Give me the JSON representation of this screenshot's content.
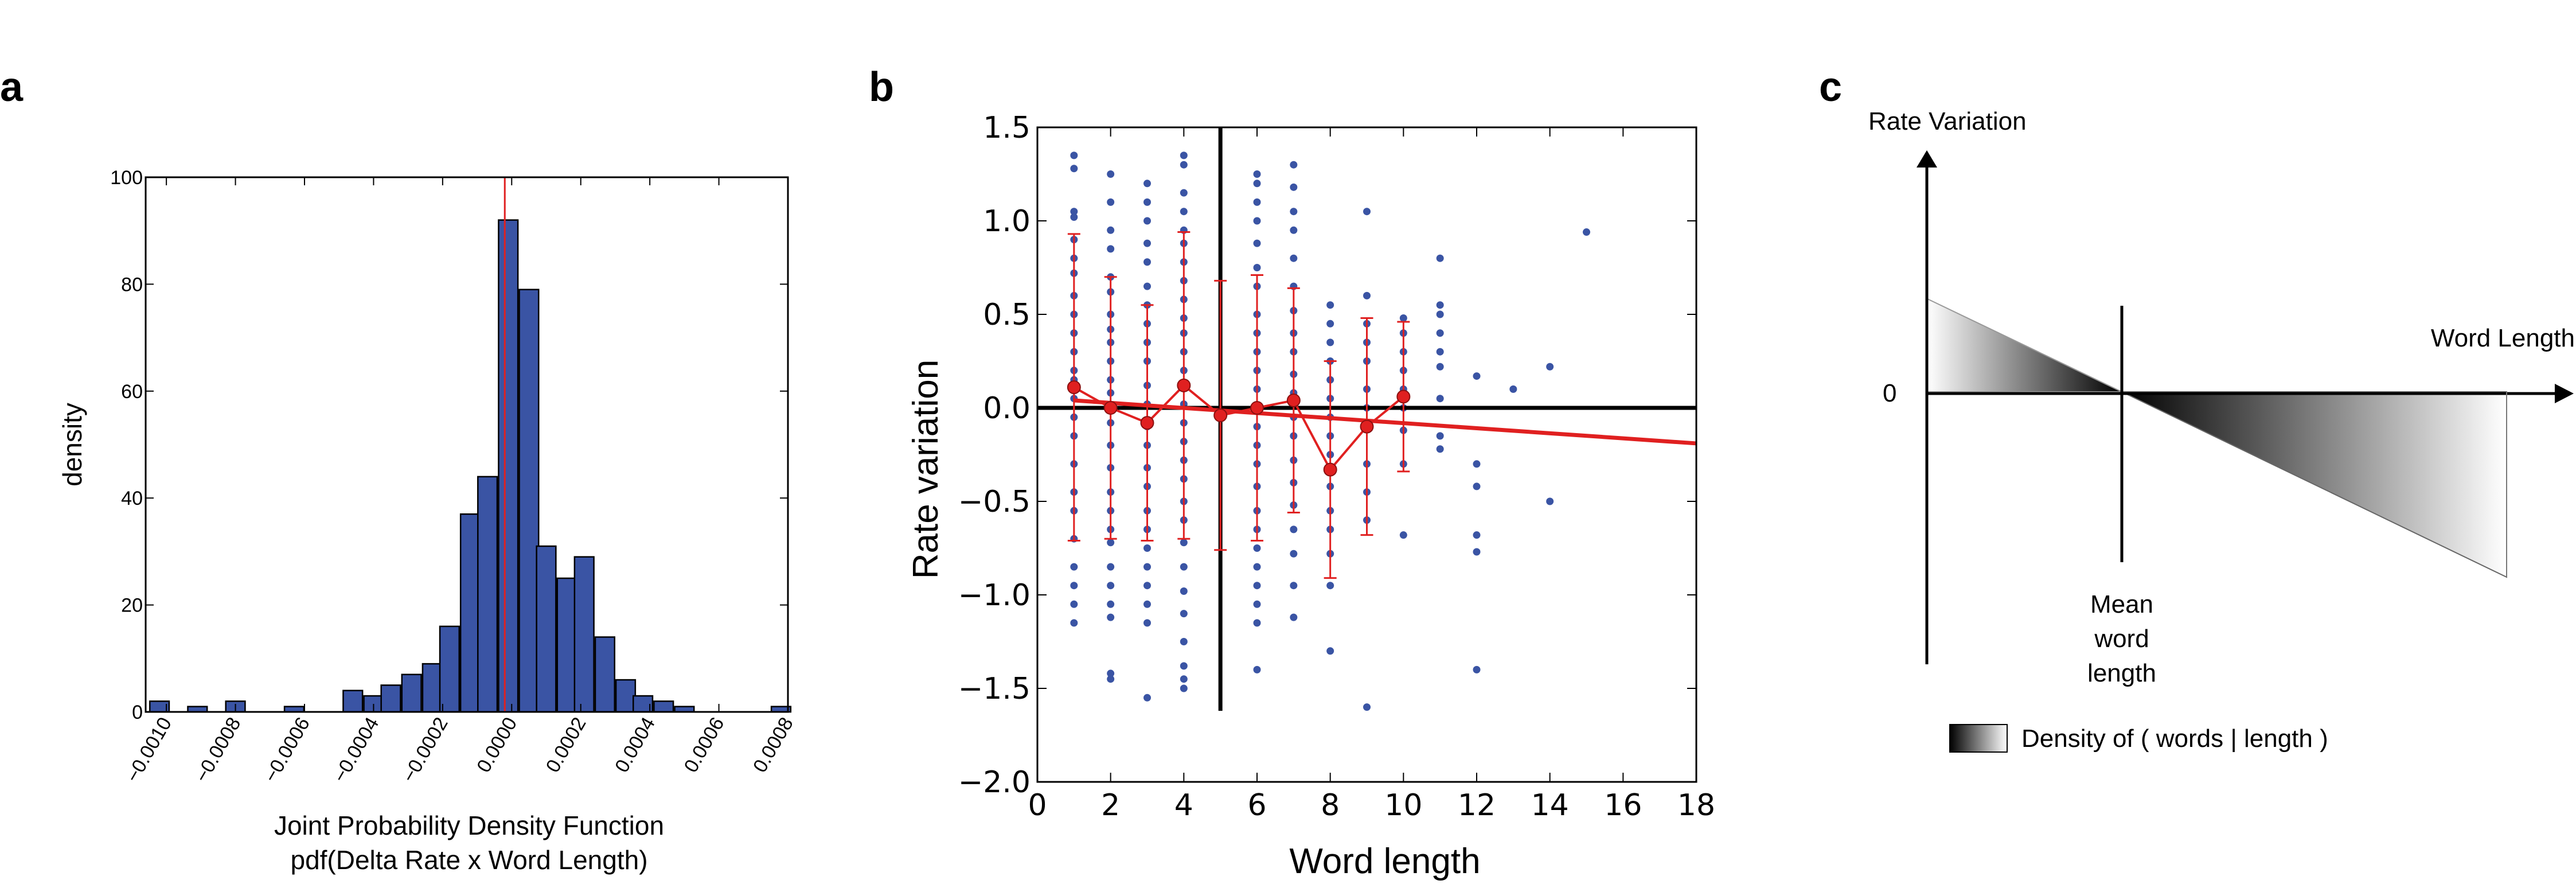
{
  "panels": {
    "a": {
      "letter": "a"
    },
    "b": {
      "letter": "b"
    },
    "c": {
      "letter": "c"
    }
  },
  "chart_data": [
    {
      "panel": "a",
      "type": "bar",
      "xlabel_line1": "Joint Probability Density Function",
      "xlabel_line2": "pdf(Delta Rate x Word Length)",
      "ylabel": "density",
      "xlim": [
        -0.00106,
        0.0008
      ],
      "ylim": [
        0,
        100
      ],
      "xticks": [
        -0.001,
        -0.0008,
        -0.0006,
        -0.0004,
        -0.0002,
        0.0,
        0.0002,
        0.0004,
        0.0006,
        0.0008
      ],
      "xtick_labels": [
        "−0.0010",
        "−0.0008",
        "−0.0006",
        "−0.0004",
        "−0.0002",
        "0.0000",
        "0.0002",
        "0.0004",
        "0.0006",
        "0.0008"
      ],
      "yticks": [
        0,
        20,
        40,
        60,
        80,
        100
      ],
      "ytick_labels": [
        "0",
        "20",
        "40",
        "60",
        "80",
        "100"
      ],
      "bin_width": 5.6e-05,
      "bin_centers": [
        -0.00102,
        -0.00091,
        -0.0008,
        -0.00074,
        -0.00063,
        -0.00046,
        -0.0004,
        -0.00035,
        -0.00029,
        -0.00023,
        -0.00018,
        -0.00012,
        -7e-05,
        -1e-05,
        5e-05,
        0.0001,
        0.00016,
        0.00021,
        0.00027,
        0.00033,
        0.00038,
        0.00044,
        0.0005,
        0.00056,
        0.00061,
        0.00067,
        0.00078
      ],
      "values": [
        2,
        1,
        2,
        0,
        1,
        4,
        3,
        5,
        7,
        9,
        16,
        37,
        44,
        92,
        79,
        31,
        25,
        29,
        14,
        6,
        3,
        2,
        1,
        0,
        0,
        0,
        1
      ],
      "vline_x": -2e-05,
      "bar_color": "#3a54a4",
      "vline_color": "#e02020"
    },
    {
      "panel": "b",
      "type": "scatter",
      "xlabel": "Word length",
      "ylabel": "Rate variation",
      "xlim": [
        0,
        18
      ],
      "ylim": [
        -2.0,
        1.5
      ],
      "xticks": [
        0,
        2,
        4,
        6,
        8,
        10,
        12,
        14,
        16,
        18
      ],
      "xtick_labels": [
        "0",
        "2",
        "4",
        "6",
        "8",
        "10",
        "12",
        "14",
        "16",
        "18"
      ],
      "yticks": [
        1.5,
        1.0,
        0.5,
        0.0,
        -0.5,
        -1.0,
        -1.5,
        -2.0
      ],
      "ytick_labels": [
        "1.5",
        "1.0",
        "0.5",
        "0.0",
        "−0.5",
        "−1.0",
        "−1.5",
        "−2.0"
      ],
      "point_columns": [
        {
          "x": 1,
          "y": [
            1.35,
            1.28,
            1.05,
            1.02,
            0.9,
            0.8,
            0.72,
            0.6,
            0.5,
            0.4,
            0.3,
            0.2,
            0.15,
            0.05,
            -0.05,
            -0.15,
            -0.3,
            -0.45,
            -0.55,
            -0.7,
            -0.85,
            -0.95,
            -1.05,
            -1.15
          ]
        },
        {
          "x": 2,
          "y": [
            1.25,
            1.1,
            0.95,
            0.85,
            0.7,
            0.62,
            0.5,
            0.42,
            0.35,
            0.25,
            0.15,
            0.08,
            0.0,
            -0.08,
            -0.2,
            -0.32,
            -0.45,
            -0.55,
            -0.65,
            -0.72,
            -0.85,
            -0.95,
            -1.05,
            -1.12,
            -1.42,
            -1.45
          ]
        },
        {
          "x": 3,
          "y": [
            1.2,
            1.1,
            1.0,
            0.88,
            0.78,
            0.65,
            0.55,
            0.45,
            0.35,
            0.25,
            0.12,
            0.02,
            -0.1,
            -0.2,
            -0.32,
            -0.42,
            -0.55,
            -0.65,
            -0.75,
            -0.85,
            -0.95,
            -1.05,
            -1.15,
            -1.55
          ]
        },
        {
          "x": 4,
          "y": [
            1.35,
            1.3,
            1.15,
            1.05,
            0.95,
            0.88,
            0.78,
            0.68,
            0.58,
            0.48,
            0.4,
            0.3,
            0.2,
            0.12,
            0.02,
            -0.08,
            -0.18,
            -0.28,
            -0.38,
            -0.5,
            -0.6,
            -0.72,
            -0.85,
            -0.98,
            -1.1,
            -1.25,
            -1.38,
            -1.45,
            -1.5
          ]
        },
        {
          "x": 6,
          "y": [
            1.25,
            1.2,
            1.1,
            1.0,
            0.88,
            0.75,
            0.65,
            0.5,
            0.4,
            0.3,
            0.2,
            0.1,
            0.0,
            -0.1,
            -0.2,
            -0.3,
            -0.42,
            -0.55,
            -0.65,
            -0.75,
            -0.85,
            -0.95,
            -1.05,
            -1.15,
            -1.4
          ]
        },
        {
          "x": 7,
          "y": [
            1.3,
            1.18,
            1.05,
            0.95,
            0.8,
            0.65,
            0.52,
            0.4,
            0.3,
            0.18,
            0.08,
            -0.05,
            -0.15,
            -0.28,
            -0.4,
            -0.52,
            -0.65,
            -0.78,
            -0.95,
            -1.12
          ]
        },
        {
          "x": 8,
          "y": [
            0.55,
            0.45,
            0.35,
            0.25,
            0.15,
            0.05,
            -0.05,
            -0.15,
            -0.25,
            -0.42,
            -0.55,
            -0.65,
            -0.78,
            -0.95,
            -1.3
          ]
        },
        {
          "x": 9,
          "y": [
            1.05,
            0.6,
            0.45,
            0.35,
            0.25,
            0.1,
            0.0,
            -0.1,
            -0.3,
            -0.45,
            -0.6,
            -1.6
          ]
        },
        {
          "x": 10,
          "y": [
            0.48,
            0.4,
            0.3,
            0.2,
            0.1,
            0.0,
            -0.12,
            -0.3,
            -0.68
          ]
        },
        {
          "x": 11,
          "y": [
            0.8,
            0.55,
            0.5,
            0.4,
            0.3,
            0.22,
            0.05,
            -0.15,
            -0.22
          ]
        },
        {
          "x": 12,
          "y": [
            0.17,
            -0.3,
            -0.42,
            -0.68,
            -0.77,
            -1.4
          ]
        },
        {
          "x": 13,
          "y": [
            0.1
          ]
        },
        {
          "x": 14,
          "y": [
            0.22,
            -0.5
          ]
        },
        {
          "x": 15,
          "y": [
            0.94
          ]
        }
      ],
      "means": {
        "x": [
          1,
          2,
          3,
          4,
          5,
          6,
          7,
          8,
          9,
          10
        ],
        "y": [
          0.11,
          0.0,
          -0.08,
          0.12,
          -0.04,
          0.0,
          0.04,
          -0.33,
          -0.1,
          0.06
        ],
        "err": [
          0.82,
          0.7,
          0.63,
          0.82,
          0.72,
          0.71,
          0.6,
          0.58,
          0.58,
          0.4
        ]
      },
      "fit_line": {
        "x": [
          1,
          18
        ],
        "y": [
          0.04,
          -0.19
        ]
      },
      "vline_x": 5,
      "vline_y": [
        -1.62,
        1.5
      ],
      "hline_y": 0,
      "point_color": "#3a54a4",
      "mean_color": "#e02020"
    },
    {
      "panel": "c",
      "type": "diagram",
      "ylabel": "Rate Variation",
      "xlabel": "Word Length",
      "zero_label": "0",
      "mean_label_lines": [
        "Mean",
        "word",
        "length"
      ],
      "legend_label": "Density of ( words | length )"
    }
  ]
}
